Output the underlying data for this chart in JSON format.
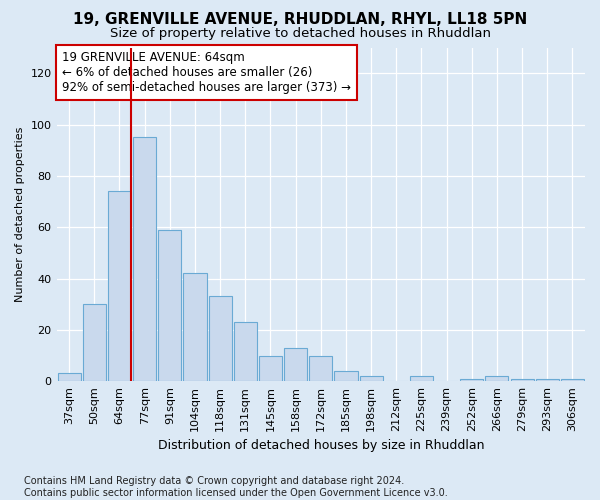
{
  "title_line1": "19, GRENVILLE AVENUE, RHUDDLAN, RHYL, LL18 5PN",
  "title_line2": "Size of property relative to detached houses in Rhuddlan",
  "xlabel": "Distribution of detached houses by size in Rhuddlan",
  "ylabel": "Number of detached properties",
  "footnote": "Contains HM Land Registry data © Crown copyright and database right 2024.\nContains public sector information licensed under the Open Government Licence v3.0.",
  "categories": [
    "37sqm",
    "50sqm",
    "64sqm",
    "77sqm",
    "91sqm",
    "104sqm",
    "118sqm",
    "131sqm",
    "145sqm",
    "158sqm",
    "172sqm",
    "185sqm",
    "198sqm",
    "212sqm",
    "225sqm",
    "239sqm",
    "252sqm",
    "266sqm",
    "279sqm",
    "293sqm",
    "306sqm"
  ],
  "values": [
    3,
    30,
    74,
    95,
    59,
    42,
    33,
    23,
    10,
    13,
    10,
    4,
    2,
    0,
    2,
    0,
    1,
    2,
    1,
    1,
    1
  ],
  "bar_color": "#c9d9ed",
  "bar_edgecolor": "#6aaad4",
  "highlight_index": 2,
  "highlight_line_color": "#cc0000",
  "annotation_text": "19 GRENVILLE AVENUE: 64sqm\n← 6% of detached houses are smaller (26)\n92% of semi-detached houses are larger (373) →",
  "annotation_box_color": "#ffffff",
  "annotation_box_edgecolor": "#cc0000",
  "ylim": [
    0,
    130
  ],
  "yticks": [
    0,
    20,
    40,
    60,
    80,
    100,
    120
  ],
  "bg_color": "#dce9f5",
  "axes_bg_color": "#dce9f5",
  "title1_fontsize": 11,
  "title2_fontsize": 9.5,
  "xlabel_fontsize": 9,
  "ylabel_fontsize": 8,
  "annotation_fontsize": 8.5,
  "tick_fontsize": 8,
  "footnote_fontsize": 7
}
